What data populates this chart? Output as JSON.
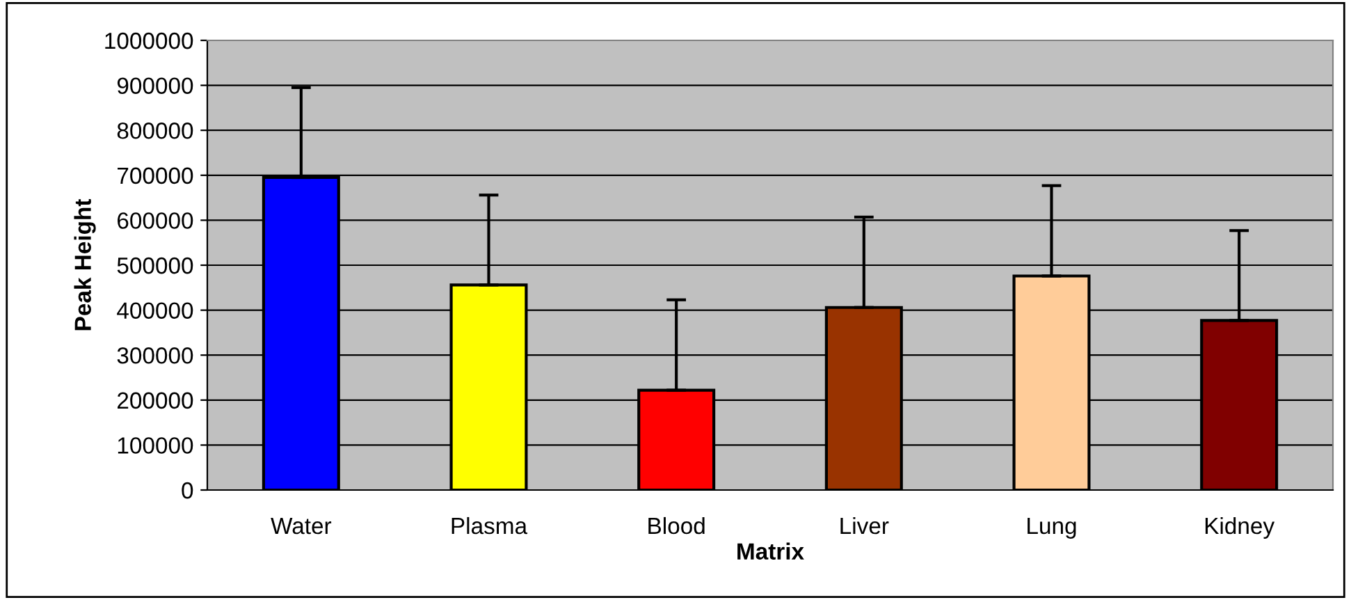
{
  "chart_data": {
    "type": "bar",
    "xlabel": "Matrix",
    "ylabel": "Peak Height",
    "categories": [
      "Water",
      "Plasma",
      "Blood",
      "Liver",
      "Lung",
      "Kidney"
    ],
    "values": [
      695000,
      456000,
      222000,
      406000,
      476000,
      377000
    ],
    "colors": [
      "#0000ff",
      "#ffff00",
      "#ff0000",
      "#993300",
      "#ffcc99",
      "#800000"
    ],
    "errors": [
      [
        695000,
        895000
      ],
      [
        456000,
        656000
      ],
      [
        222000,
        423000
      ],
      [
        406000,
        607000
      ],
      [
        476000,
        677000
      ],
      [
        377000,
        577000
      ]
    ],
    "ylim": [
      0,
      1000000
    ],
    "yticks": [
      0,
      100000,
      200000,
      300000,
      400000,
      500000,
      600000,
      700000,
      800000,
      900000,
      1000000
    ],
    "grid": "y",
    "legend": false
  }
}
